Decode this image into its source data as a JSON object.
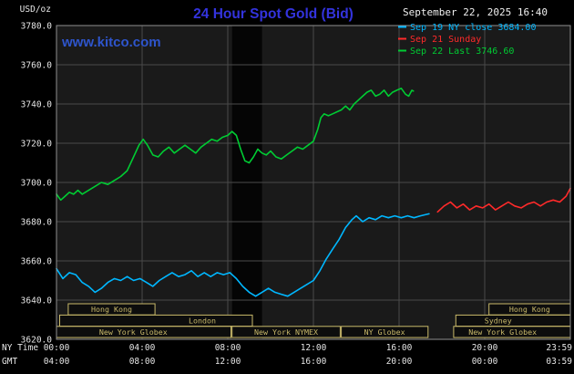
{
  "header": {
    "units": "USD/oz",
    "title": "24 Hour Spot Gold (Bid)",
    "watermark": "www.kitco.com",
    "datetime": "September 22, 2025 16:40"
  },
  "legend": {
    "items": [
      {
        "text": "Sep 19 NY close 3684.00",
        "color": "#00b7ff"
      },
      {
        "text": "Sep 21 Sunday",
        "color": "#ff2a2a"
      },
      {
        "text": "Sep 22 Last 3746.60",
        "color": "#00cc33"
      }
    ]
  },
  "axes": {
    "x_left_label": "NY Time",
    "x_left_label2": "GMT"
  },
  "colors": {
    "background": "#000000",
    "plot_bg": "#1a1a1a",
    "shaded_band": "#050505",
    "grid": "#4a4a4a",
    "border": "#909090",
    "title": "#3333dd",
    "watermark": "#2e55cc",
    "text": "#e6e6e6",
    "session": "#c9b96a"
  },
  "chart_data": {
    "type": "line",
    "title": "24 Hour Spot Gold (Bid)",
    "ylabel": "USD/oz",
    "ylim": [
      3620,
      3780
    ],
    "y_step": 20,
    "xlim_hours": [
      0,
      24
    ],
    "grid": true,
    "legend_position": "top-right",
    "shaded_band_hours": [
      8.2,
      9.6
    ],
    "x_ticks": [
      {
        "h": 0,
        "ny": "00:00",
        "gmt": "04:00"
      },
      {
        "h": 4,
        "ny": "04:00",
        "gmt": "08:00"
      },
      {
        "h": 8,
        "ny": "08:00",
        "gmt": "12:00"
      },
      {
        "h": 12,
        "ny": "12:00",
        "gmt": "16:00"
      },
      {
        "h": 16,
        "ny": "16:00",
        "gmt": "20:00"
      },
      {
        "h": 20,
        "ny": "20:00",
        "gmt": "00:00"
      },
      {
        "h": 24,
        "ny": "23:59",
        "gmt": "03:59"
      }
    ],
    "series": [
      {
        "name": "Sep 19 NY close 3684.00",
        "color": "#00b7ff",
        "points": [
          [
            0,
            3656
          ],
          [
            0.3,
            3651
          ],
          [
            0.6,
            3654
          ],
          [
            0.9,
            3653
          ],
          [
            1.2,
            3649
          ],
          [
            1.5,
            3647
          ],
          [
            1.8,
            3644
          ],
          [
            2.1,
            3646
          ],
          [
            2.4,
            3649
          ],
          [
            2.7,
            3651
          ],
          [
            3,
            3650
          ],
          [
            3.3,
            3652
          ],
          [
            3.6,
            3650
          ],
          [
            3.9,
            3651
          ],
          [
            4.2,
            3649
          ],
          [
            4.5,
            3647
          ],
          [
            4.8,
            3650
          ],
          [
            5.1,
            3652
          ],
          [
            5.4,
            3654
          ],
          [
            5.7,
            3652
          ],
          [
            6,
            3653
          ],
          [
            6.3,
            3655
          ],
          [
            6.6,
            3652
          ],
          [
            6.9,
            3654
          ],
          [
            7.2,
            3652
          ],
          [
            7.5,
            3654
          ],
          [
            7.8,
            3653
          ],
          [
            8.1,
            3654
          ],
          [
            8.4,
            3651
          ],
          [
            8.7,
            3647
          ],
          [
            9,
            3644
          ],
          [
            9.3,
            3642
          ],
          [
            9.6,
            3644
          ],
          [
            9.9,
            3646
          ],
          [
            10.2,
            3644
          ],
          [
            10.5,
            3643
          ],
          [
            10.8,
            3642
          ],
          [
            11.1,
            3644
          ],
          [
            11.4,
            3646
          ],
          [
            11.7,
            3648
          ],
          [
            12,
            3650
          ],
          [
            12.3,
            3655
          ],
          [
            12.6,
            3661
          ],
          [
            12.9,
            3666
          ],
          [
            13.2,
            3671
          ],
          [
            13.5,
            3677
          ],
          [
            13.8,
            3681
          ],
          [
            14,
            3683
          ],
          [
            14.3,
            3680
          ],
          [
            14.6,
            3682
          ],
          [
            14.9,
            3681
          ],
          [
            15.2,
            3683
          ],
          [
            15.5,
            3682
          ],
          [
            15.8,
            3683
          ],
          [
            16.1,
            3682
          ],
          [
            16.4,
            3683
          ],
          [
            16.7,
            3682
          ],
          [
            17,
            3683
          ],
          [
            17.4,
            3684
          ]
        ]
      },
      {
        "name": "Sep 21 Sunday",
        "color": "#ff2a2a",
        "points": [
          [
            17.8,
            3685
          ],
          [
            18.1,
            3688
          ],
          [
            18.4,
            3690
          ],
          [
            18.7,
            3687
          ],
          [
            19,
            3689
          ],
          [
            19.3,
            3686
          ],
          [
            19.6,
            3688
          ],
          [
            19.9,
            3687
          ],
          [
            20.2,
            3689
          ],
          [
            20.5,
            3686
          ],
          [
            20.8,
            3688
          ],
          [
            21.1,
            3690
          ],
          [
            21.4,
            3688
          ],
          [
            21.7,
            3687
          ],
          [
            22,
            3689
          ],
          [
            22.3,
            3690
          ],
          [
            22.6,
            3688
          ],
          [
            22.9,
            3690
          ],
          [
            23.2,
            3691
          ],
          [
            23.5,
            3690
          ],
          [
            23.8,
            3693
          ],
          [
            24,
            3697
          ]
        ]
      },
      {
        "name": "Sep 22 Last 3746.60",
        "color": "#00cc33",
        "points": [
          [
            0,
            3694
          ],
          [
            0.2,
            3691
          ],
          [
            0.4,
            3693
          ],
          [
            0.6,
            3695
          ],
          [
            0.8,
            3694
          ],
          [
            1,
            3696
          ],
          [
            1.2,
            3694
          ],
          [
            1.5,
            3696
          ],
          [
            1.8,
            3698
          ],
          [
            2.1,
            3700
          ],
          [
            2.4,
            3699
          ],
          [
            2.7,
            3701
          ],
          [
            3,
            3703
          ],
          [
            3.3,
            3706
          ],
          [
            3.6,
            3713
          ],
          [
            3.85,
            3719
          ],
          [
            4.05,
            3722
          ],
          [
            4.25,
            3719
          ],
          [
            4.5,
            3714
          ],
          [
            4.75,
            3713
          ],
          [
            5,
            3716
          ],
          [
            5.25,
            3718
          ],
          [
            5.5,
            3715
          ],
          [
            5.75,
            3717
          ],
          [
            6,
            3719
          ],
          [
            6.25,
            3717
          ],
          [
            6.5,
            3715
          ],
          [
            6.75,
            3718
          ],
          [
            7,
            3720
          ],
          [
            7.25,
            3722
          ],
          [
            7.5,
            3721
          ],
          [
            7.75,
            3723
          ],
          [
            8,
            3724
          ],
          [
            8.2,
            3726
          ],
          [
            8.4,
            3724
          ],
          [
            8.6,
            3717
          ],
          [
            8.8,
            3711
          ],
          [
            9,
            3710
          ],
          [
            9.2,
            3713
          ],
          [
            9.4,
            3717
          ],
          [
            9.6,
            3715
          ],
          [
            9.8,
            3714
          ],
          [
            10,
            3716
          ],
          [
            10.25,
            3713
          ],
          [
            10.5,
            3712
          ],
          [
            10.75,
            3714
          ],
          [
            11,
            3716
          ],
          [
            11.25,
            3718
          ],
          [
            11.5,
            3717
          ],
          [
            11.75,
            3719
          ],
          [
            12,
            3721
          ],
          [
            12.2,
            3727
          ],
          [
            12.35,
            3733
          ],
          [
            12.5,
            3735
          ],
          [
            12.7,
            3734
          ],
          [
            12.9,
            3735
          ],
          [
            13.1,
            3736
          ],
          [
            13.3,
            3737
          ],
          [
            13.5,
            3739
          ],
          [
            13.7,
            3737
          ],
          [
            13.9,
            3740
          ],
          [
            14.1,
            3742
          ],
          [
            14.3,
            3744
          ],
          [
            14.5,
            3746
          ],
          [
            14.7,
            3747
          ],
          [
            14.9,
            3744
          ],
          [
            15.1,
            3745
          ],
          [
            15.3,
            3747
          ],
          [
            15.5,
            3744
          ],
          [
            15.7,
            3746
          ],
          [
            15.9,
            3747
          ],
          [
            16.1,
            3748
          ],
          [
            16.3,
            3745
          ],
          [
            16.45,
            3744
          ],
          [
            16.6,
            3747
          ],
          [
            16.67,
            3746.6
          ]
        ]
      }
    ],
    "sessions": [
      {
        "row": 0,
        "boxes": [
          {
            "s": 0.55,
            "e": 4.6,
            "label": "Hong Kong",
            "lp": 0.5
          },
          {
            "s": 20.2,
            "e": 24,
            "label": "Hong Kong",
            "lp": 0.5
          }
        ]
      },
      {
        "row": 1,
        "boxes": [
          {
            "s": 0.15,
            "e": 9.15,
            "label": "London",
            "lp": 0.74
          },
          {
            "s": 18.65,
            "e": 24,
            "label": "Sydney",
            "lp": 0.37
          }
        ]
      },
      {
        "row": 2,
        "boxes": [
          {
            "s": 0.0,
            "e": 8.15,
            "label": "New York Globex",
            "lp": 0.44
          },
          {
            "s": 8.2,
            "e": 13.25,
            "label": "New York NYMEX",
            "lp": 0.5
          },
          {
            "s": 13.3,
            "e": 17.35,
            "label": "NY Globex",
            "lp": 0.5
          },
          {
            "s": 18.55,
            "e": 24,
            "label": "New York Globex",
            "lp": 0.42
          }
        ]
      }
    ]
  }
}
